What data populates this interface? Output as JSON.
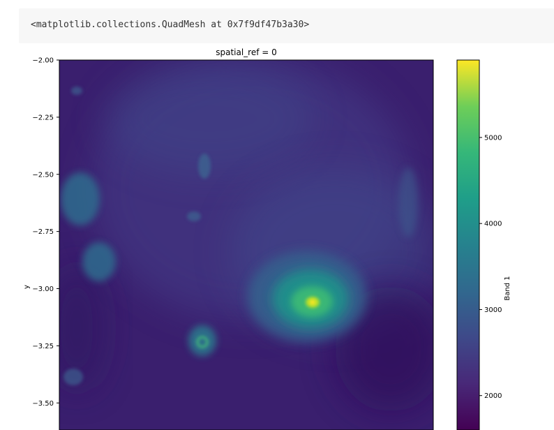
{
  "cell_output": "<matplotlib.collections.QuadMesh at 0x7f9df47b3a30>",
  "chart_data": {
    "type": "heatmap",
    "title": "spatial_ref = 0",
    "ylabel": "y",
    "xlabel": "",
    "colormap": "viridis",
    "colorbar_label": "Band 1",
    "colorbar_range": [
      1600,
      5900
    ],
    "colorbar_ticks": [
      2000,
      3000,
      4000,
      5000
    ],
    "ylim": [
      -3.63,
      -2.0
    ],
    "y_ticks": [
      -2.0,
      -2.25,
      -2.5,
      -2.75,
      -3.0,
      -3.25,
      -3.5
    ],
    "y_tick_labels": [
      "−2.00",
      "−2.25",
      "−2.50",
      "−2.75",
      "−3.00",
      "−3.25",
      "−3.50"
    ],
    "peak_value": 5900,
    "peak_y": -3.07
  }
}
